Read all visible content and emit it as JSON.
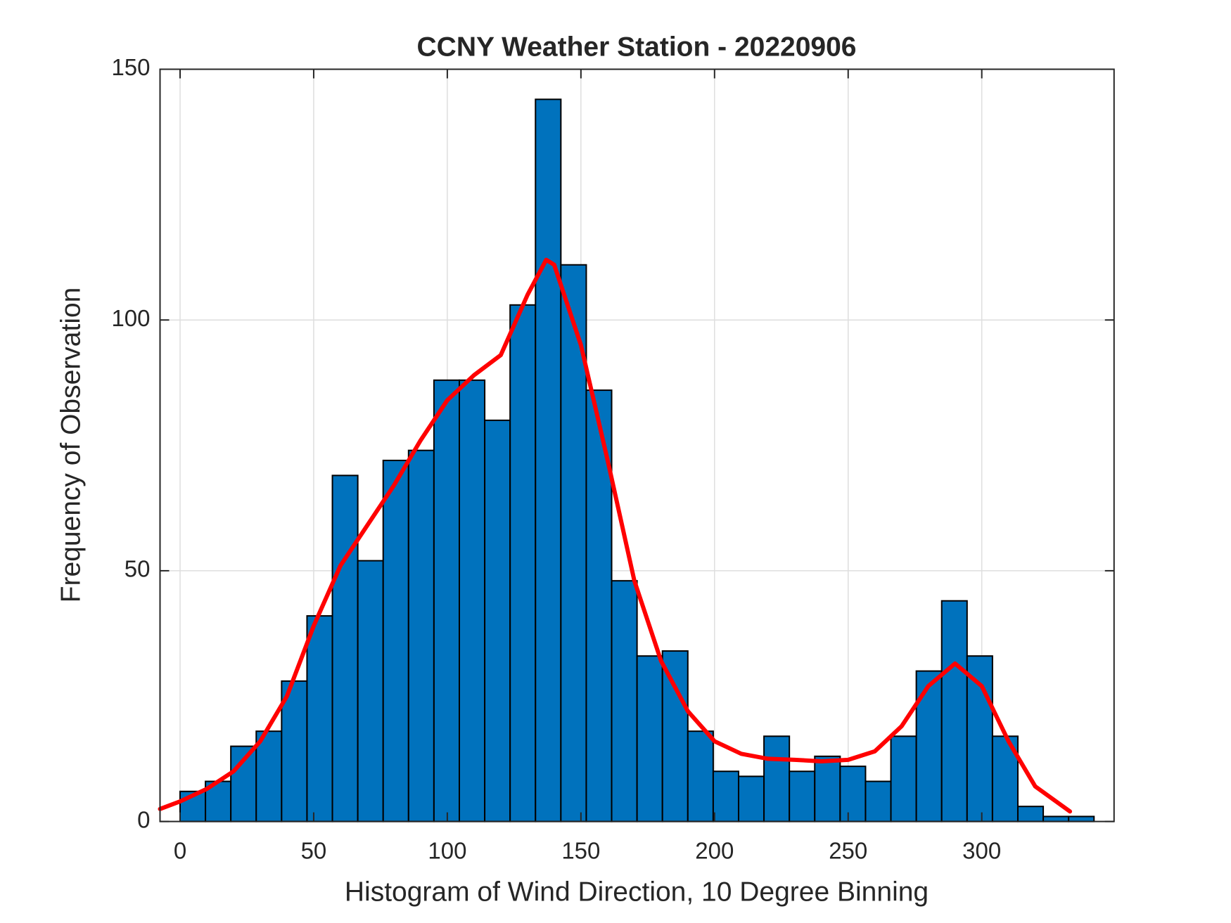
{
  "chart_data": {
    "type": "histogram",
    "title": "CCNY Weather Station - 20220906",
    "x_label": "Histogram of Wind Direction, 10 Degree Binning",
    "y_label": "Frequency of Observation",
    "bins": [
      0,
      9.5,
      19,
      28.5,
      38,
      47.5,
      57,
      66.5,
      76,
      85.5,
      95,
      104.5,
      114,
      123.5,
      133,
      142.5,
      152,
      161.5,
      171,
      180.5,
      190,
      199.5,
      209,
      218.5,
      228,
      237.5,
      247,
      256.5,
      266,
      275.5,
      285,
      294.5,
      304,
      313.5,
      323,
      332.5,
      342
    ],
    "counts": [
      6,
      8,
      15,
      18,
      28,
      41,
      69,
      52,
      72,
      74,
      88,
      88,
      80,
      103,
      144,
      111,
      86,
      48,
      33,
      34,
      18,
      10,
      9,
      17,
      10,
      13,
      11,
      8,
      17,
      30,
      44,
      33,
      17,
      3,
      1,
      1
    ],
    "color": "#0072bd",
    "density_curve": {
      "x": [
        -7.5,
        0,
        10,
        20,
        30,
        40,
        50,
        60,
        70,
        80,
        90,
        100,
        110,
        120,
        130,
        137,
        140,
        150,
        160,
        170,
        180,
        190,
        200,
        210,
        220,
        230,
        240,
        250,
        260,
        270,
        280,
        290,
        300,
        310,
        320,
        333
      ],
      "y": [
        2.5,
        4,
        6.5,
        10,
        16,
        25,
        39,
        51,
        59,
        67,
        76,
        84,
        89,
        93,
        105,
        112,
        111,
        95,
        72,
        48,
        32,
        22,
        16,
        13.5,
        12.5,
        12.3,
        12,
        12.3,
        14,
        19,
        27,
        31.5,
        27,
        16,
        7,
        2
      ],
      "color": "#ff0000"
    },
    "xlim": [
      -7.5,
      349.5
    ],
    "ylim": [
      0,
      150
    ],
    "xticks": [
      0,
      50,
      100,
      150,
      200,
      250,
      300
    ],
    "yticks": [
      0,
      50,
      100,
      150
    ],
    "grid": true
  }
}
